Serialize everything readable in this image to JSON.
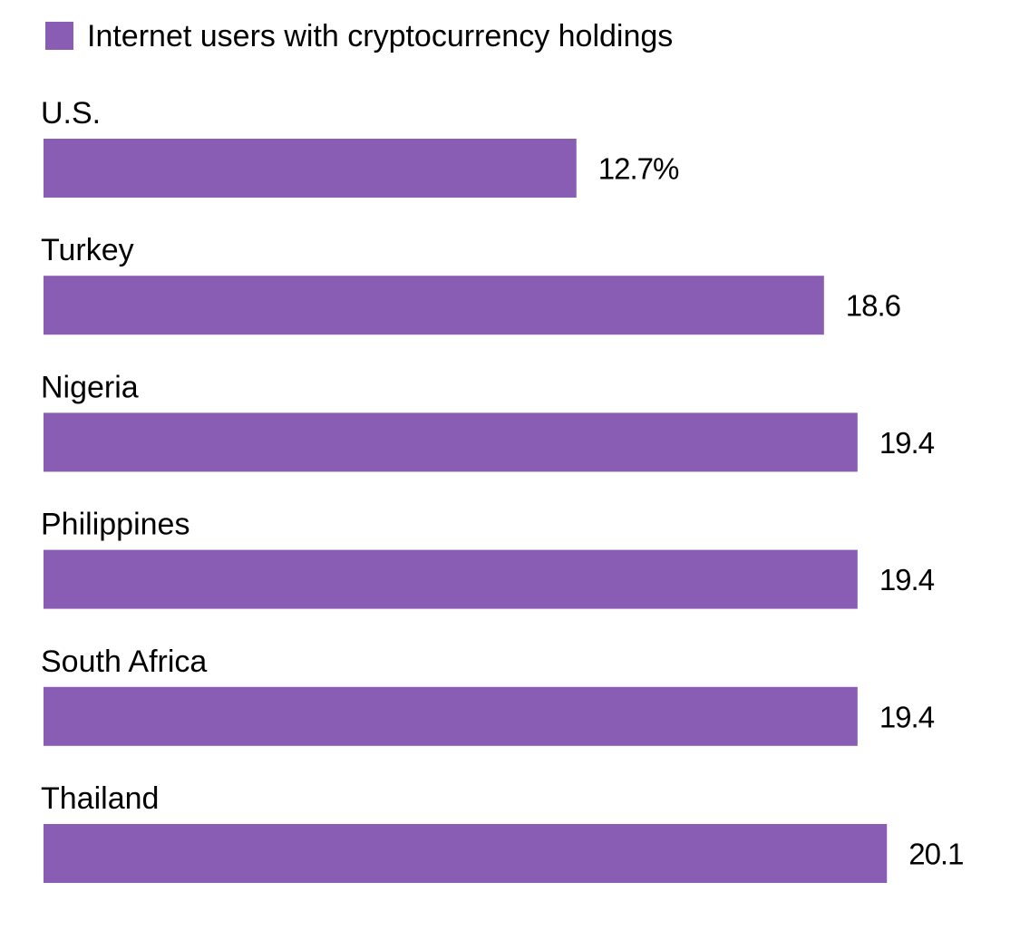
{
  "chart_data": {
    "type": "bar",
    "orientation": "horizontal",
    "legend": {
      "placement": "top-left",
      "entries": [
        "Internet users with cryptocurrency holdings"
      ]
    },
    "categories": [
      "U.S.",
      "Turkey",
      "Nigeria",
      "Philippines",
      "South Africa",
      "Thailand"
    ],
    "series": [
      {
        "name": "Internet users with cryptocurrency holdings",
        "values": [
          12.7,
          18.6,
          19.4,
          19.4,
          19.4,
          20.1
        ],
        "value_labels": [
          "12.7%",
          "18.6",
          "19.4",
          "19.4",
          "19.4",
          "20.1"
        ]
      }
    ],
    "xlim": [
      0,
      20.1
    ],
    "grid": false,
    "colors": {
      "bar": "#8a5db5"
    }
  }
}
